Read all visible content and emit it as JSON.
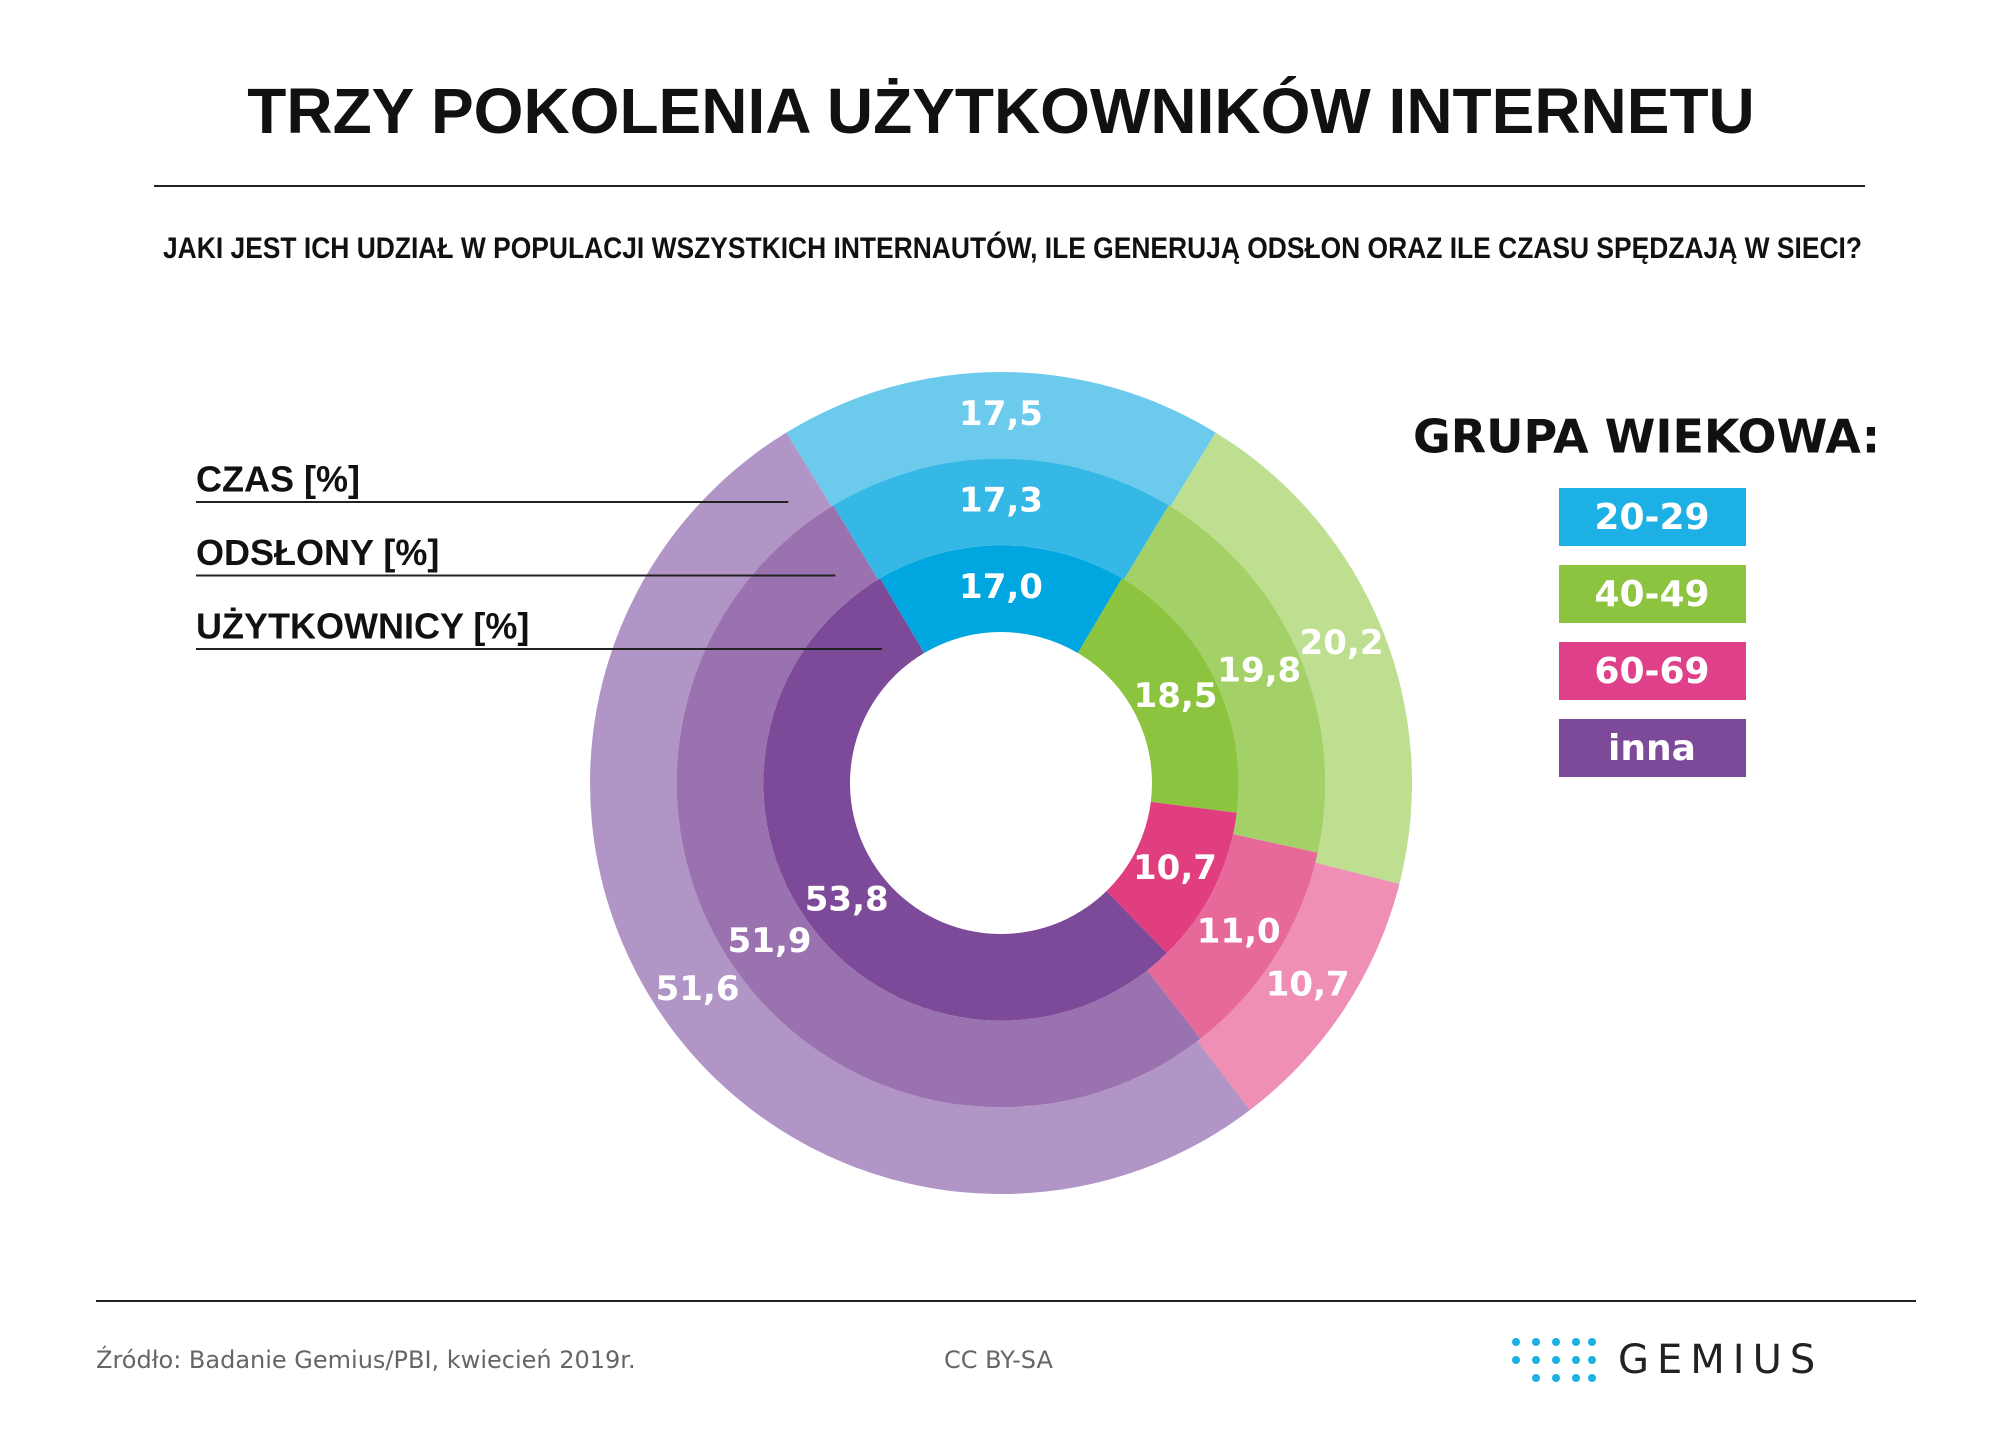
{
  "chart_data": {
    "type": "donut",
    "title": "TRZY POKOLENIA UŻYTKOWNIKÓW INTERNETU",
    "subtitle": "JAKI JEST ICH UDZIAŁ W POPULACJI WSZYSTKICH INTERNAUTÓW, ILE GENERUJĄ ODSŁON ORAZ ILE CZASU SPĘDZAJĄ W SIECI?",
    "legend_title": "GRUPA WIEKOWA:",
    "categories": [
      "20-29",
      "40-49",
      "60-69",
      "inna"
    ],
    "colors": [
      "#1cb0e4",
      "#8cc43f",
      "#e0408a",
      "#7d4a99"
    ],
    "series": [
      {
        "name": "CZAS [%]",
        "colors": [
          "#6ccbed",
          "#bddf8f",
          "#ef8fb5",
          "#b095c6"
        ],
        "values": [
          17.5,
          20.2,
          10.7,
          51.6
        ],
        "value_labels": [
          "17,5",
          "20,2",
          "10,7",
          "51,6"
        ]
      },
      {
        "name": "ODSŁONY [%]",
        "colors": [
          "#35b8e6",
          "#a3d067",
          "#e7699a",
          "#9a72b0"
        ],
        "values": [
          17.3,
          19.8,
          11.0,
          51.9
        ],
        "value_labels": [
          "17,3",
          "19,8",
          "11,0",
          "51,9"
        ]
      },
      {
        "name": "UŻYTKOWNICY [%]",
        "colors": [
          "#00a6df",
          "#8cc43f",
          "#e03e7f",
          "#7d4a99"
        ],
        "values": [
          17.0,
          18.5,
          10.7,
          53.8
        ],
        "value_labels": [
          "17,0",
          "18,5",
          "10,7",
          "53,8"
        ]
      }
    ]
  },
  "footer": {
    "source": "Źródło: Badanie Gemius/PBI, kwiecień 2019r.",
    "license": "CC BY-SA",
    "logo": "GEMIUS"
  }
}
